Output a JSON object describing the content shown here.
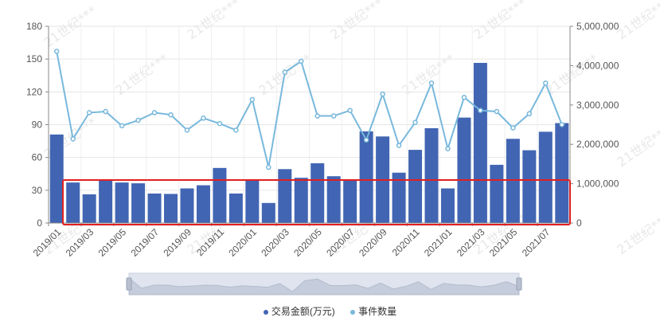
{
  "chart_data": {
    "type": "bar+line",
    "categories": [
      "2019/01",
      "2019/02",
      "2019/03",
      "2019/04",
      "2019/05",
      "2019/06",
      "2019/07",
      "2019/08",
      "2019/09",
      "2019/10",
      "2019/11",
      "2019/12",
      "2020/01",
      "2020/02",
      "2020/03",
      "2020/04",
      "2020/05",
      "2020/06",
      "2020/07",
      "2020/08",
      "2020/09",
      "2020/10",
      "2020/11",
      "2020/12",
      "2021/01",
      "2021/02",
      "2021/03",
      "2021/04",
      "2021/05",
      "2021/06",
      "2021/07",
      "2021/08"
    ],
    "x_tick_labels": [
      "2019/01",
      "2019/03",
      "2019/05",
      "2019/07",
      "2019/09",
      "2019/11",
      "2020/01",
      "2020/03",
      "2020/05",
      "2020/07",
      "2020/09",
      "2020/11",
      "2021/01",
      "2021/03",
      "2021/05",
      "2021/07"
    ],
    "series": [
      {
        "name": "交易金额(万元)",
        "type": "bar",
        "axis": "right",
        "color": "#4265b3",
        "values": [
          2250000,
          1030000,
          730000,
          1080000,
          1030000,
          1010000,
          750000,
          740000,
          880000,
          960000,
          1400000,
          750000,
          1110000,
          510000,
          1370000,
          1150000,
          1520000,
          1190000,
          1110000,
          2330000,
          2200000,
          1280000,
          1860000,
          2410000,
          880000,
          2680000,
          4070000,
          1480000,
          2140000,
          1850000,
          2320000,
          2540000
        ]
      },
      {
        "name": "事件数量",
        "type": "line",
        "axis": "left",
        "color": "#78b8dc",
        "values": [
          157,
          77,
          101,
          102,
          89,
          94,
          101,
          99,
          85,
          96,
          91,
          85,
          113,
          51,
          138,
          148,
          98,
          98,
          103,
          76,
          118,
          71,
          92,
          128,
          68,
          115,
          103,
          102,
          87,
          100,
          128,
          90
        ]
      }
    ],
    "y_left": {
      "min": 0,
      "max": 180,
      "ticks": [
        "0",
        "30",
        "60",
        "90",
        "120",
        "150",
        "180"
      ]
    },
    "y_right": {
      "min": 0,
      "max": 5000000,
      "ticks": [
        "0",
        "1,000,000",
        "2,000,000",
        "3,000,000",
        "4,000,000",
        "5,000,000"
      ]
    },
    "grid": true,
    "legend_position": "bottom-center",
    "highlight_box_color": "#e02020",
    "watermark_text": "21世纪***"
  }
}
